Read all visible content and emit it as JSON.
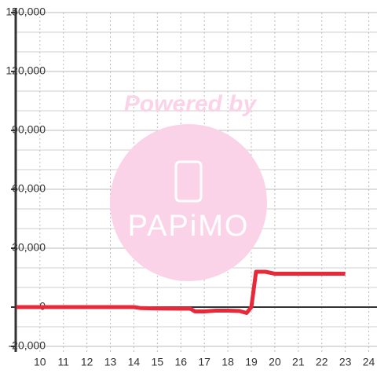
{
  "chart_data": {
    "type": "line",
    "x": [
      9,
      10,
      11,
      12,
      13,
      14,
      14.3,
      15,
      16,
      16.4,
      16.6,
      17,
      17.5,
      18,
      18.5,
      18.8,
      19,
      19.2,
      19.6,
      20,
      21,
      22,
      23
    ],
    "series": [
      {
        "color": "#e8293a",
        "values": [
          0,
          0,
          0,
          0,
          0,
          0,
          -500,
          -700,
          -800,
          -800,
          -2200,
          -2200,
          -1800,
          -1800,
          -2000,
          -3000,
          0,
          18000,
          18000,
          17000,
          17000,
          17000,
          17000
        ]
      }
    ],
    "xlim": [
      8.97,
      24.35
    ],
    "xticks": [
      10,
      11,
      12,
      13,
      14,
      15,
      16,
      17,
      18,
      19,
      20,
      21,
      22,
      23,
      24
    ],
    "ylim": [
      -20000,
      150000
    ],
    "yticks": [
      {
        "value": -20000,
        "label": "-20,000"
      },
      0,
      {
        "value": 30000,
        "label": "30,000"
      },
      {
        "value": 60000,
        "label": "60,000"
      },
      {
        "value": 90000,
        "label": "90,000"
      },
      {
        "value": 120000,
        "label": "120,000"
      },
      {
        "value": 150000,
        "label": "150,000"
      }
    ],
    "minor_yticks": [
      -10000,
      10000,
      20000,
      40000,
      50000,
      70000,
      80000,
      100000,
      110000,
      130000,
      140000
    ],
    "grid": true,
    "watermark": {
      "line1": "Powered by",
      "line2": "PAPiMO"
    }
  }
}
